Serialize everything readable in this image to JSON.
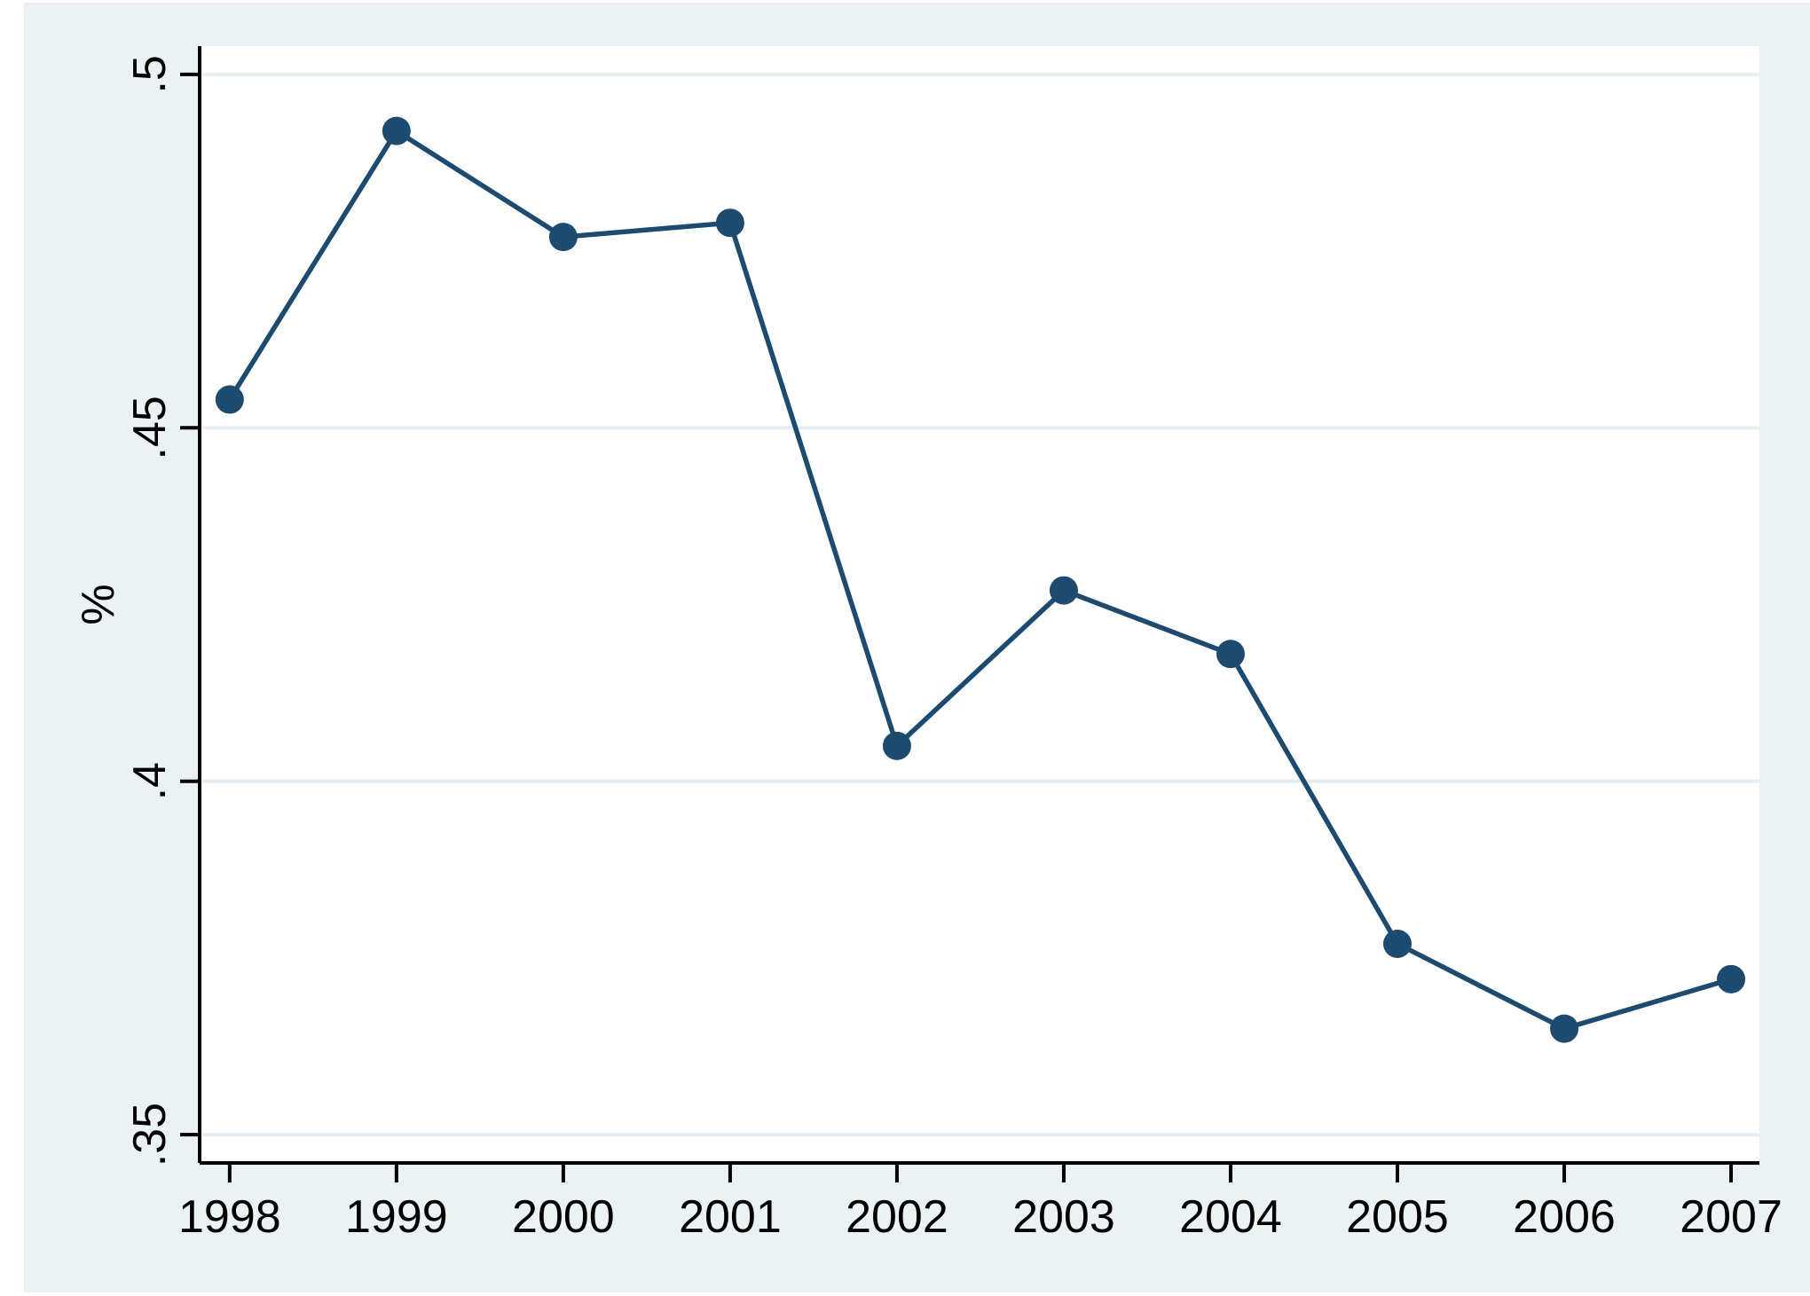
{
  "figure": {
    "background_color": "#eaf2f3",
    "plot_background_color": "#ffffff",
    "axis_color": "#000000",
    "text_color": "#000000",
    "gridline_color": "#e7eff2",
    "series_color": "#1d4a6f"
  },
  "chart_data": {
    "type": "line",
    "title": "",
    "xlabel": "",
    "ylabel": "%",
    "x": [
      1998,
      1999,
      2000,
      2001,
      2002,
      2003,
      2004,
      2005,
      2006,
      2007
    ],
    "series": [
      {
        "name": "percent",
        "values": [
          0.454,
          0.492,
          0.477,
          0.479,
          0.405,
          0.427,
          0.418,
          0.377,
          0.365,
          0.372
        ]
      }
    ],
    "xtick_labels": [
      "1998",
      "1999",
      "2000",
      "2001",
      "2002",
      "2003",
      "2004",
      "2005",
      "2006",
      "2007"
    ],
    "yticks": [
      0.35,
      0.4,
      0.45,
      0.5
    ],
    "ytick_labels": [
      ".35",
      ".4",
      ".45",
      ".5"
    ],
    "ylim": [
      0.346,
      0.504
    ],
    "xlim": [
      1997.82,
      2007.17
    ],
    "grid": "horizontal-only",
    "legend": "none",
    "marker": "filled-circle",
    "ytick_label_rotation": -90,
    "ylabel_rotation": -90
  }
}
